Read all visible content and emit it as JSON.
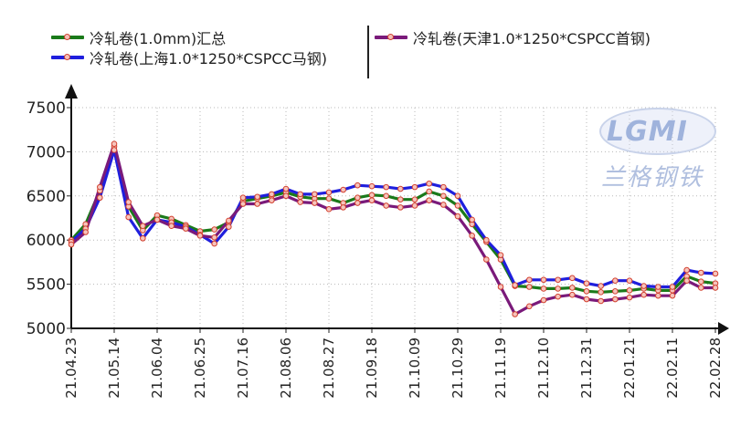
{
  "chart_data": {
    "type": "line",
    "ylim": [
      5000,
      7500
    ],
    "yticks": [
      5000,
      5500,
      6000,
      6500,
      7000,
      7500
    ],
    "x": [
      "21.04.23",
      "21.04.30",
      "21.05.07",
      "21.05.14",
      "21.05.21",
      "21.05.28",
      "21.06.04",
      "21.06.11",
      "21.06.18",
      "21.06.25",
      "21.07.02",
      "21.07.09",
      "21.07.16",
      "21.07.23",
      "21.07.30",
      "21.08.06",
      "21.08.13",
      "21.08.20",
      "21.08.27",
      "21.09.03",
      "21.09.10",
      "21.09.18",
      "21.09.24",
      "21.10.01",
      "21.10.09",
      "21.10.15",
      "21.10.22",
      "21.10.29",
      "21.11.05",
      "21.11.12",
      "21.11.19",
      "21.11.26",
      "21.12.03",
      "21.12.10",
      "21.12.17",
      "21.12.24",
      "21.12.31",
      "22.01.07",
      "22.01.14",
      "22.01.21",
      "22.01.28",
      "22.02.04",
      "22.02.11",
      "22.02.18",
      "22.02.25",
      "22.02.28"
    ],
    "xtick_labels": [
      "21.04.23",
      "21.05.14",
      "21.06.04",
      "21.06.25",
      "21.07.16",
      "21.08.06",
      "21.08.27",
      "21.09.18",
      "21.10.09",
      "21.10.29",
      "21.11.19",
      "21.12.10",
      "21.12.31",
      "22.01.21",
      "22.02.11",
      "22.02.28"
    ],
    "series": [
      {
        "name": "冷轧卷(1.0mm)汇总",
        "color": "#1a7a1a",
        "values": [
          6000,
          6180,
          6560,
          7060,
          6380,
          6110,
          6280,
          6240,
          6170,
          6100,
          6120,
          6200,
          6440,
          6470,
          6500,
          6540,
          6490,
          6470,
          6470,
          6420,
          6480,
          6510,
          6500,
          6460,
          6460,
          6550,
          6500,
          6390,
          6180,
          5980,
          5780,
          5480,
          5470,
          5450,
          5450,
          5460,
          5420,
          5410,
          5420,
          5430,
          5450,
          5430,
          5430,
          5590,
          5530,
          5510
        ]
      },
      {
        "name": "冷轧卷(上海1.0*1250*CSPCC马钢)",
        "color": "#1f1fdd",
        "values": [
          5980,
          6130,
          6480,
          7020,
          6260,
          6020,
          6230,
          6200,
          6150,
          6060,
          5960,
          6150,
          6480,
          6490,
          6520,
          6580,
          6520,
          6520,
          6540,
          6570,
          6620,
          6610,
          6600,
          6580,
          6600,
          6640,
          6600,
          6500,
          6230,
          6000,
          5830,
          5490,
          5550,
          5550,
          5550,
          5570,
          5510,
          5480,
          5540,
          5540,
          5480,
          5470,
          5470,
          5660,
          5630,
          5620
        ]
      },
      {
        "name": "冷轧卷(天津1.0*1250*CSPCC首钢)",
        "color": "#7a1a7a",
        "values": [
          5950,
          6090,
          6600,
          7090,
          6430,
          6160,
          6230,
          6160,
          6130,
          6050,
          6030,
          6220,
          6410,
          6410,
          6450,
          6500,
          6430,
          6420,
          6350,
          6370,
          6420,
          6450,
          6390,
          6370,
          6390,
          6450,
          6400,
          6270,
          6050,
          5780,
          5470,
          5160,
          5250,
          5320,
          5360,
          5380,
          5330,
          5310,
          5330,
          5350,
          5380,
          5370,
          5370,
          5540,
          5460,
          5460
        ]
      }
    ]
  },
  "watermark": {
    "logo_text": "LGMI",
    "subtitle": "兰格钢铁"
  }
}
